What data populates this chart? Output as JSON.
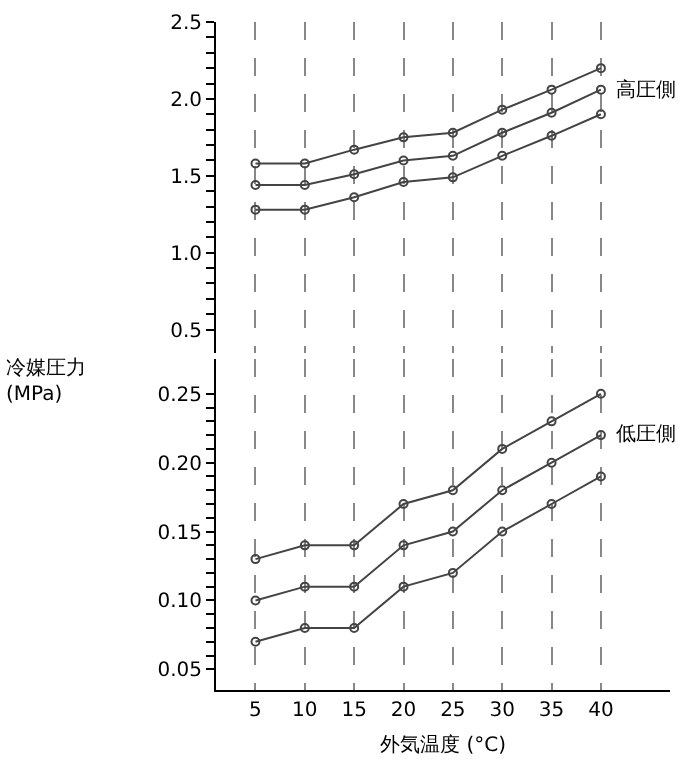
{
  "chart_data": [
    {
      "type": "line",
      "ylabel": "冷媒圧力\n(MPa)",
      "x": [
        5,
        10,
        15,
        20,
        25,
        30,
        35,
        40
      ],
      "xticks": [
        5,
        10,
        15,
        20,
        25,
        30,
        35,
        40
      ],
      "ylim": [
        0.35,
        2.5
      ],
      "yticks": [
        0.5,
        {
          "value": 0.6,
          "label": null
        },
        {
          "value": 0.7,
          "label": null
        },
        {
          "value": 0.8,
          "label": null
        },
        {
          "value": 0.9,
          "label": null
        },
        {
          "value": 1,
          "label": "1.0"
        },
        {
          "value": 1.1,
          "label": null
        },
        {
          "value": 1.2,
          "label": null
        },
        {
          "value": 1.3,
          "label": null
        },
        {
          "value": 1.4,
          "label": null
        },
        1.5,
        {
          "value": 1.6,
          "label": null
        },
        {
          "value": 1.7,
          "label": null
        },
        {
          "value": 1.8,
          "label": null
        },
        {
          "value": 1.9,
          "label": null
        },
        {
          "value": 2,
          "label": "2.0"
        },
        {
          "value": 2.1,
          "label": null
        },
        {
          "value": 2.2,
          "label": null
        },
        {
          "value": 2.3,
          "label": null
        },
        {
          "value": 2.4,
          "label": null
        },
        2.5
      ],
      "tick_labels": "y",
      "grid": "x",
      "marker": "circle",
      "line_style": "solid",
      "series": [
        {
          "color": "#444444",
          "values": [
            1.58,
            1.58,
            1.67,
            1.75,
            1.78,
            1.93,
            2.06,
            2.2
          ]
        },
        {
          "name": "高圧側",
          "color": "#444444",
          "values": [
            1.44,
            1.44,
            1.51,
            1.6,
            1.63,
            1.78,
            1.91,
            2.06
          ]
        },
        {
          "color": "#444444",
          "values": [
            1.28,
            1.28,
            1.36,
            1.46,
            1.49,
            1.63,
            1.76,
            1.9
          ]
        }
      ]
    },
    {
      "type": "line",
      "xlabel": "外気温度 (°C)",
      "x": [
        5,
        10,
        15,
        20,
        25,
        30,
        35,
        40
      ],
      "xlim": [
        1,
        47
      ],
      "xticks": [
        5,
        10,
        15,
        20,
        25,
        30,
        35,
        40
      ],
      "ylim": [
        0.035,
        0.275
      ],
      "yticks": [
        0.05,
        {
          "value": 0.06,
          "label": null
        },
        {
          "value": 0.07,
          "label": null
        },
        {
          "value": 0.08,
          "label": null
        },
        {
          "value": 0.09,
          "label": null
        },
        {
          "value": 0.1,
          "label": "0.10"
        },
        {
          "value": 0.11,
          "label": null
        },
        {
          "value": 0.12,
          "label": null
        },
        {
          "value": 0.13,
          "label": null
        },
        {
          "value": 0.14,
          "label": null
        },
        0.15,
        {
          "value": 0.16,
          "label": null
        },
        {
          "value": 0.17,
          "label": null
        },
        {
          "value": 0.18,
          "label": null
        },
        {
          "value": 0.19,
          "label": null
        },
        {
          "value": 0.2,
          "label": "0.20"
        },
        {
          "value": 0.21,
          "label": null
        },
        {
          "value": 0.22,
          "label": null
        },
        {
          "value": 0.23,
          "label": null
        },
        {
          "value": 0.24,
          "label": null
        },
        0.25
      ],
      "grid": "x",
      "marker": "circle",
      "line_style": "solid",
      "series": [
        {
          "color": "#444444",
          "values": [
            0.13,
            0.14,
            0.14,
            0.17,
            0.18,
            0.21,
            0.23,
            0.25
          ]
        },
        {
          "name": "低圧側",
          "color": "#444444",
          "values": [
            0.1,
            0.11,
            0.11,
            0.14,
            0.15,
            0.18,
            0.2,
            0.22
          ]
        },
        {
          "color": "#444444",
          "values": [
            0.07,
            0.08,
            0.08,
            0.11,
            0.12,
            0.15,
            0.17,
            0.19
          ]
        }
      ]
    }
  ]
}
